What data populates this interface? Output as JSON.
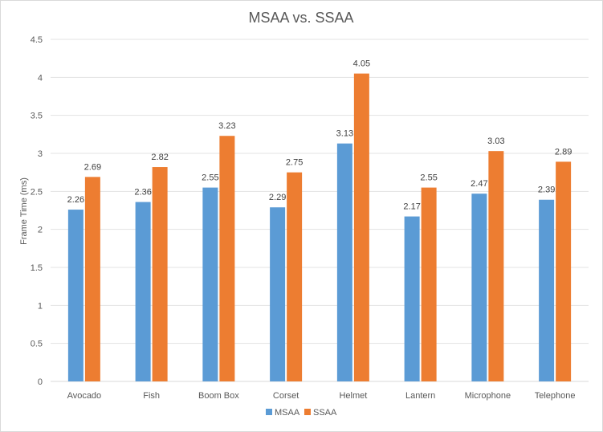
{
  "chart_data": {
    "type": "bar",
    "title": "MSAA vs. SSAA",
    "xlabel": "",
    "ylabel": "Frame Time (ms)",
    "ylim": [
      0,
      4.5
    ],
    "y_ticks": [
      "0",
      "0.5",
      "1",
      "1.5",
      "2",
      "2.5",
      "3",
      "3.5",
      "4",
      "4.5"
    ],
    "categories": [
      "Avocado",
      "Fish",
      "Boom Box",
      "Corset",
      "Helmet",
      "Lantern",
      "Microphone",
      "Telephone"
    ],
    "series": [
      {
        "name": "MSAA",
        "color": "#5b9bd5",
        "values": [
          2.26,
          2.36,
          2.55,
          2.29,
          3.13,
          2.17,
          2.47,
          2.39
        ],
        "labels": [
          "2.26",
          "2.36",
          "2.55",
          "2.29",
          "3.13",
          "2.17",
          "2.47",
          "2.39"
        ]
      },
      {
        "name": "SSAA",
        "color": "#ed7d31",
        "values": [
          2.69,
          2.82,
          3.23,
          2.75,
          4.05,
          2.55,
          3.03,
          2.89
        ],
        "labels": [
          "2.69",
          "2.82",
          "3.23",
          "2.75",
          "4.05",
          "2.55",
          "3.03",
          "2.89"
        ]
      }
    ],
    "grid": true,
    "legend_position": "bottom"
  }
}
